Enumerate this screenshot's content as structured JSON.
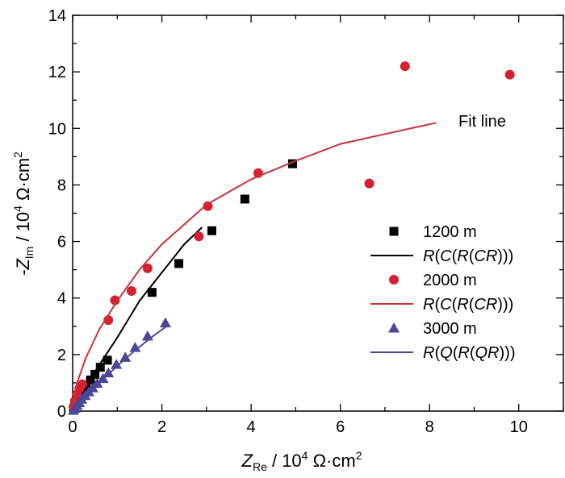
{
  "chart_data": {
    "type": "scatter",
    "xlabel": {
      "main": "Z",
      "sub": "Re",
      "rest": " / 10",
      "sup": "4",
      "unit": " Ω·cm",
      "sup2": "2"
    },
    "ylabel": {
      "main": "-Z",
      "sub": "Im",
      "rest": " / 10",
      "sup": "4",
      "unit": " Ω·cm",
      "sup2": "2"
    },
    "xlim": [
      0,
      11
    ],
    "ylim": [
      0,
      14
    ],
    "xticks": [
      0,
      2,
      4,
      6,
      8,
      10
    ],
    "yticks": [
      0,
      2,
      4,
      6,
      8,
      10,
      12,
      14
    ],
    "annotation": "Fit line",
    "legend_position": "right",
    "series": [
      {
        "name": "1200 m",
        "kind": "points",
        "marker": "square",
        "color": "#000000",
        "x": [
          0.02,
          0.05,
          0.1,
          0.15,
          0.22,
          0.3,
          0.4,
          0.5,
          0.62,
          0.78,
          1.78,
          2.38,
          3.12,
          3.86,
          4.93
        ],
        "y": [
          0.08,
          0.2,
          0.38,
          0.55,
          0.72,
          0.9,
          1.1,
          1.3,
          1.55,
          1.8,
          4.2,
          5.22,
          6.38,
          7.5,
          8.75
        ]
      },
      {
        "name": "R(C(R(CR)))",
        "kind": "line",
        "color": "#000000",
        "x": [
          0,
          0.2,
          0.5,
          1.0,
          1.5,
          2.0,
          2.5,
          2.9
        ],
        "y": [
          0,
          0.75,
          1.4,
          2.6,
          3.9,
          4.9,
          5.9,
          6.5
        ]
      },
      {
        "name": "2000 m",
        "kind": "points",
        "marker": "circle",
        "color": "#d42030",
        "x": [
          0.02,
          0.05,
          0.1,
          0.15,
          0.22,
          0.8,
          0.95,
          1.32,
          1.68,
          2.83,
          3.03,
          4.16,
          6.65,
          7.45,
          9.8
        ],
        "y": [
          0.15,
          0.35,
          0.6,
          0.8,
          0.95,
          3.22,
          3.92,
          4.25,
          5.05,
          6.18,
          7.25,
          8.42,
          8.05,
          12.2,
          11.9
        ]
      },
      {
        "name": "R(C(R(CR)))",
        "kind": "line",
        "color": "#c8323c",
        "x": [
          0,
          0.1,
          0.3,
          0.6,
          1.0,
          1.5,
          2.0,
          3.0,
          4.0,
          5.0,
          6.0,
          7.0,
          8.15
        ],
        "y": [
          0,
          1.0,
          1.9,
          2.9,
          3.9,
          5.0,
          5.9,
          7.3,
          8.2,
          8.85,
          9.45,
          9.8,
          10.2
        ]
      },
      {
        "name": "3000 m",
        "kind": "points",
        "marker": "triangle",
        "color": "#4c4898",
        "x": [
          0.02,
          0.05,
          0.1,
          0.15,
          0.2,
          0.28,
          0.36,
          0.45,
          0.55,
          0.68,
          0.8,
          0.98,
          1.18,
          1.4,
          1.68,
          2.08
        ],
        "y": [
          0.03,
          0.1,
          0.2,
          0.3,
          0.42,
          0.55,
          0.68,
          0.82,
          0.98,
          1.15,
          1.35,
          1.65,
          1.9,
          2.25,
          2.65,
          3.12
        ]
      },
      {
        "name": "R(Q(R(QR)))",
        "kind": "line",
        "color": "#4c4898",
        "x": [
          0,
          0.3,
          0.6,
          1.0,
          1.4,
          1.8,
          2.15
        ],
        "y": [
          0,
          0.5,
          1.0,
          1.6,
          2.15,
          2.65,
          3.05
        ]
      }
    ]
  }
}
